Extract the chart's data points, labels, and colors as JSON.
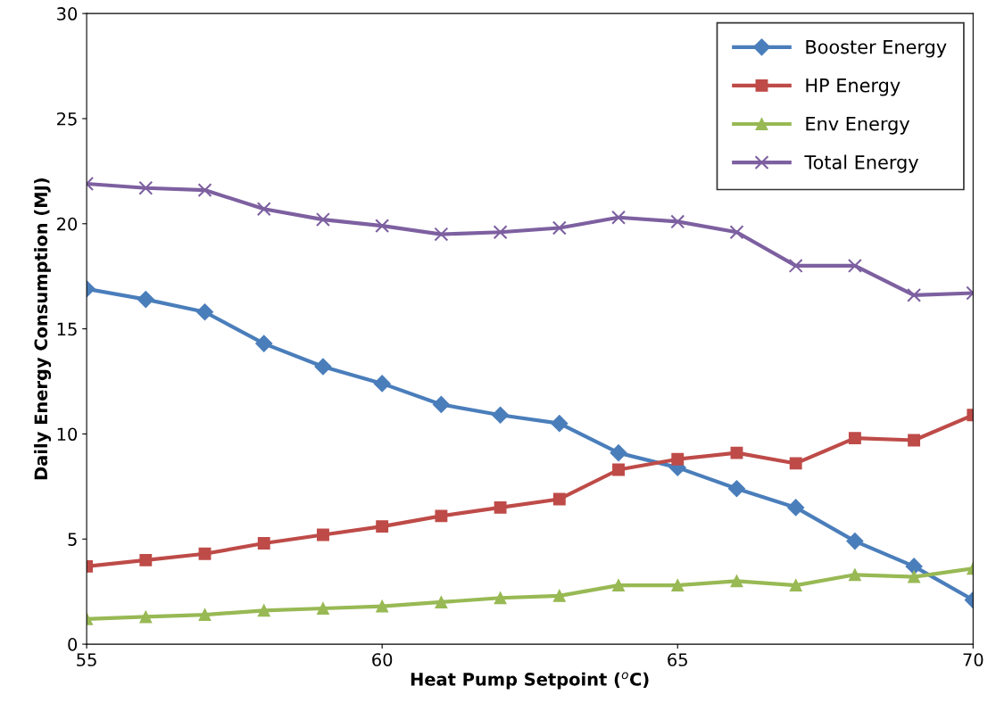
{
  "chart_data": {
    "type": "line",
    "xlabel": "Heat Pump Setpoint ($^{o}$C)",
    "ylabel": "Daily Energy Consumption (MJ)",
    "x": [
      55,
      56,
      57,
      58,
      59,
      60,
      61,
      62,
      63,
      64,
      65,
      66,
      67,
      68,
      69,
      70
    ],
    "series": [
      {
        "name": "Booster Energy",
        "color": "#4a7ebb",
        "marker": "diamond",
        "values": [
          16.9,
          16.4,
          15.8,
          14.3,
          13.2,
          12.4,
          11.4,
          10.9,
          10.5,
          9.1,
          8.4,
          7.4,
          6.5,
          4.9,
          3.7,
          2.1
        ]
      },
      {
        "name": "HP Energy",
        "color": "#be4b48",
        "marker": "square",
        "values": [
          3.7,
          4.0,
          4.3,
          4.8,
          5.2,
          5.6,
          6.1,
          6.5,
          6.9,
          8.3,
          8.8,
          9.1,
          8.6,
          9.8,
          9.7,
          10.9
        ]
      },
      {
        "name": "Env Energy",
        "color": "#98b954",
        "marker": "triangle",
        "values": [
          1.2,
          1.3,
          1.4,
          1.6,
          1.7,
          1.8,
          2.0,
          2.2,
          2.3,
          2.8,
          2.8,
          3.0,
          2.8,
          3.3,
          3.2,
          3.6
        ]
      },
      {
        "name": "Total Energy",
        "color": "#7d60a0",
        "marker": "cross",
        "values": [
          21.9,
          21.7,
          21.6,
          20.7,
          20.2,
          19.9,
          19.5,
          19.6,
          19.8,
          20.3,
          20.1,
          19.6,
          18.0,
          18.0,
          16.6,
          16.7
        ]
      }
    ],
    "xlim": [
      55,
      70
    ],
    "xticks": [
      55,
      60,
      65,
      70
    ],
    "ylim": [
      0,
      30
    ],
    "yticks": [
      0,
      5,
      10,
      15,
      20,
      25,
      30
    ],
    "grid": false,
    "legend": "top right",
    "line_style": "solid"
  }
}
